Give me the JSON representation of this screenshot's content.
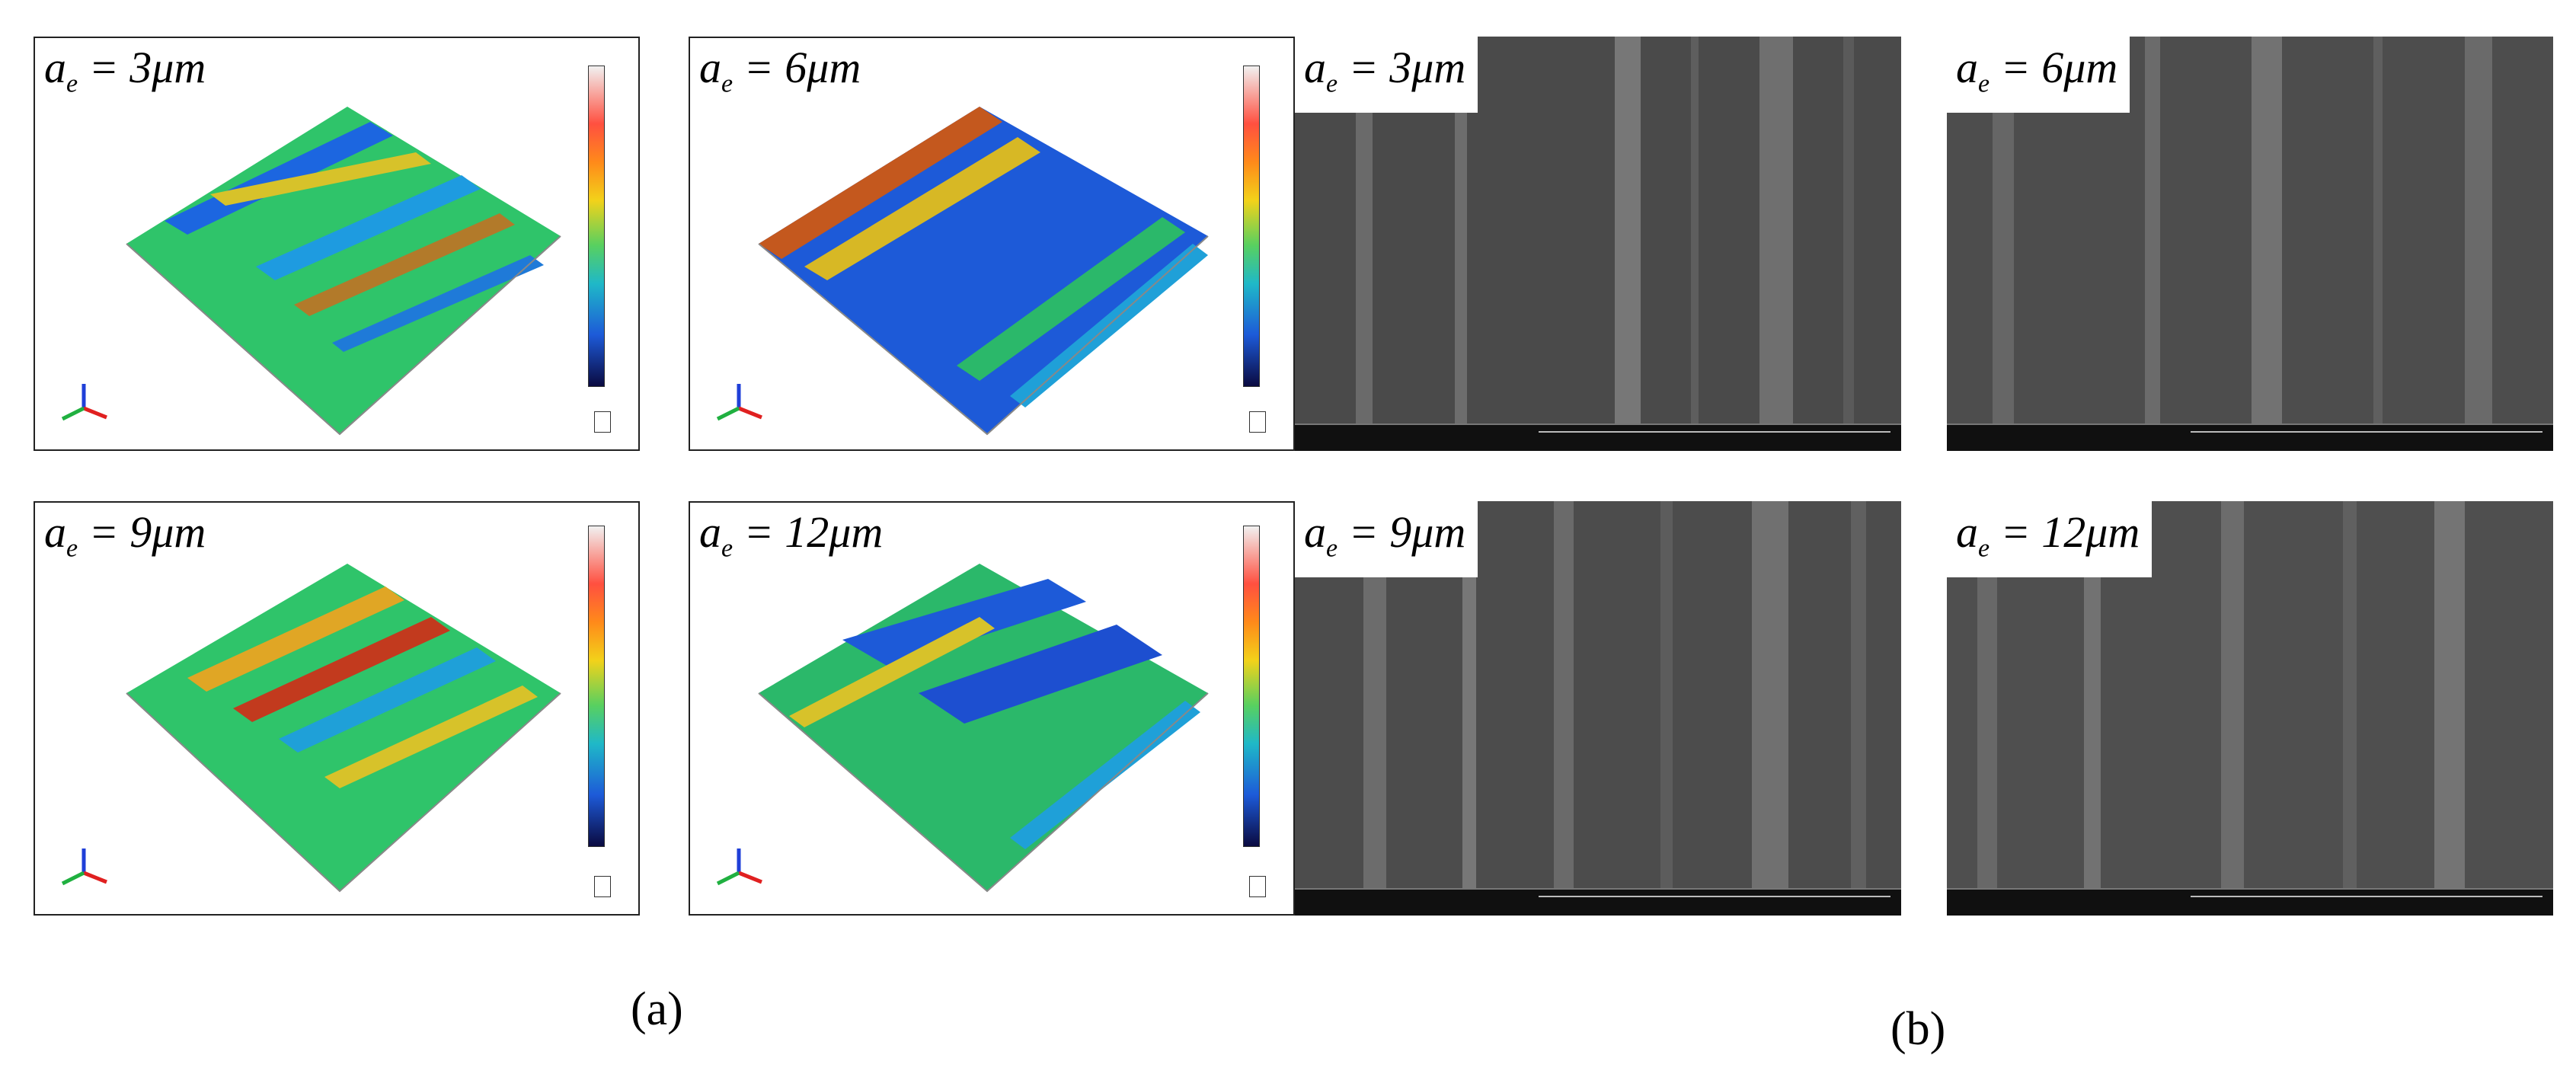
{
  "panels": {
    "topo_3": {
      "label_a": "a",
      "label_sub": "e",
      "label_val": " = 3",
      "label_unit": "μm"
    },
    "topo_6": {
      "label_a": "a",
      "label_sub": "e",
      "label_val": " = 6",
      "label_unit": "μm"
    },
    "topo_9": {
      "label_a": "a",
      "label_sub": "e",
      "label_val": " = 9",
      "label_unit": "μm"
    },
    "topo_12": {
      "label_a": "a",
      "label_sub": "e",
      "label_val": " = 12",
      "label_unit": "μm"
    },
    "sem_3": {
      "label_a": "a",
      "label_sub": "e",
      "label_val": " = 3",
      "label_unit": "μm"
    },
    "sem_6": {
      "label_a": "a",
      "label_sub": "e",
      "label_val": " = 6",
      "label_unit": "μm"
    },
    "sem_9": {
      "label_a": "a",
      "label_sub": "e",
      "label_val": " = 9",
      "label_unit": "μm"
    },
    "sem_12": {
      "label_a": "a",
      "label_sub": "e",
      "label_val": " = 12",
      "label_unit": "μm"
    }
  },
  "sublabels": {
    "a": "(a)",
    "b": "(b)"
  },
  "colors": {
    "background": "#ffffff",
    "sem_gray": "#4b4b4b",
    "border": "#222222"
  }
}
